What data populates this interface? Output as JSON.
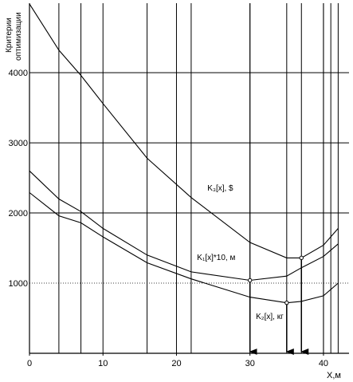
{
  "chart_data": {
    "type": "line",
    "ylabel_lines": [
      "Критерии",
      "оптимизации"
    ],
    "xlabel": "X,м",
    "xlim": [
      0,
      42.5
    ],
    "ylim": [
      0,
      4990
    ],
    "x_ticks": [
      0,
      10,
      20,
      30,
      40
    ],
    "y_ticks": [
      1000,
      2000,
      3000,
      4000
    ],
    "x_tick_labels": [
      "0",
      "10",
      "20",
      "30",
      "40"
    ],
    "y_tick_labels": [
      "1000",
      "2000",
      "3000",
      "4000"
    ],
    "vertical_gridlines": [
      4,
      7,
      16,
      22,
      30,
      35,
      37,
      40,
      41,
      42
    ],
    "horizontal_gridlines": [
      2000,
      3000,
      4000
    ],
    "dotted_gridlines": [
      1000
    ],
    "series": [
      {
        "name": "K₃[x], $",
        "points": [
          [
            0,
            4980
          ],
          [
            4,
            4320
          ],
          [
            7,
            3960
          ],
          [
            10,
            3560
          ],
          [
            16,
            2780
          ],
          [
            22,
            2220
          ],
          [
            30,
            1580
          ],
          [
            35,
            1360
          ],
          [
            37,
            1360
          ],
          [
            40,
            1540
          ],
          [
            42,
            1780
          ]
        ]
      },
      {
        "name": "K₁[x]*10, м",
        "points": [
          [
            0,
            2600
          ],
          [
            4,
            2200
          ],
          [
            7,
            2020
          ],
          [
            10,
            1780
          ],
          [
            16,
            1400
          ],
          [
            22,
            1160
          ],
          [
            30,
            1040
          ],
          [
            35,
            1100
          ],
          [
            37,
            1220
          ],
          [
            40,
            1380
          ],
          [
            42,
            1560
          ]
        ]
      },
      {
        "name": "K₂[x], кг",
        "points": [
          [
            0,
            2290
          ],
          [
            4,
            1960
          ],
          [
            7,
            1860
          ],
          [
            10,
            1660
          ],
          [
            16,
            1290
          ],
          [
            22,
            1060
          ],
          [
            30,
            800
          ],
          [
            35,
            720
          ],
          [
            37,
            740
          ],
          [
            40,
            820
          ],
          [
            42,
            1000
          ]
        ]
      }
    ],
    "optimum_markers": [
      {
        "x": 30,
        "y": 1040
      },
      {
        "x": 35,
        "y": 720
      },
      {
        "x": 37,
        "y": 1360
      }
    ],
    "annotations": [
      {
        "text": "K₃[x], $",
        "x": 24.2,
        "y": 2320
      },
      {
        "text": "K₁[x]*10, м",
        "x": 22.8,
        "y": 1330
      },
      {
        "text": "K₂[x], кг",
        "x": 30.8,
        "y": 490
      }
    ]
  }
}
